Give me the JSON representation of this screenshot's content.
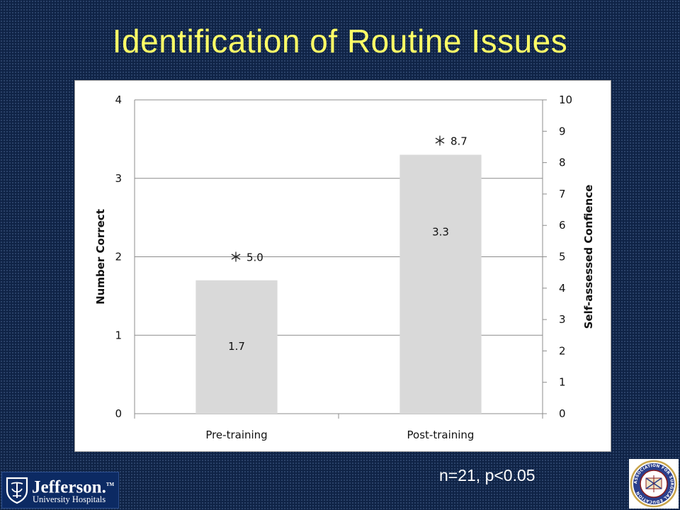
{
  "slide": {
    "title": "Identification of Routine Issues",
    "footnote": "n=21, p<0.05"
  },
  "logos": {
    "left": {
      "name": "Jefferson.",
      "trademark": "TM",
      "subtitle": "University Hospitals",
      "icon": "jefferson-crest-icon"
    },
    "right": {
      "icon": "association-seal-icon",
      "seal_text": "ASSOCIATION FOR SURGICAL EDUCATION"
    }
  },
  "colors": {
    "background": "#0f2346",
    "title": "#ffff66",
    "bar_fill": "#d9d9d9",
    "footnote": "#ffffff"
  },
  "chart_data": {
    "type": "bar",
    "categories": [
      "Pre-training",
      "Post-training"
    ],
    "series": [
      {
        "axis": "left",
        "values": [
          1.7,
          3.3
        ],
        "data_labels": [
          "1.7",
          "3.3"
        ],
        "color": "#d9d9d9"
      },
      {
        "axis": "right",
        "marker": "asterisk",
        "values": [
          5.0,
          8.7
        ],
        "data_labels": [
          "5.0",
          "8.7"
        ]
      }
    ],
    "left_axis": {
      "label": "Number Correct",
      "min": 0,
      "max": 4,
      "ticks": [
        "0",
        "1",
        "2",
        "3",
        "4"
      ]
    },
    "right_axis": {
      "label": "Self-assessed Confience",
      "min": 0,
      "max": 10,
      "ticks": [
        "0",
        "1",
        "2",
        "3",
        "4",
        "5",
        "6",
        "7",
        "8",
        "9",
        "10"
      ]
    },
    "grid": true,
    "legend": "none"
  }
}
